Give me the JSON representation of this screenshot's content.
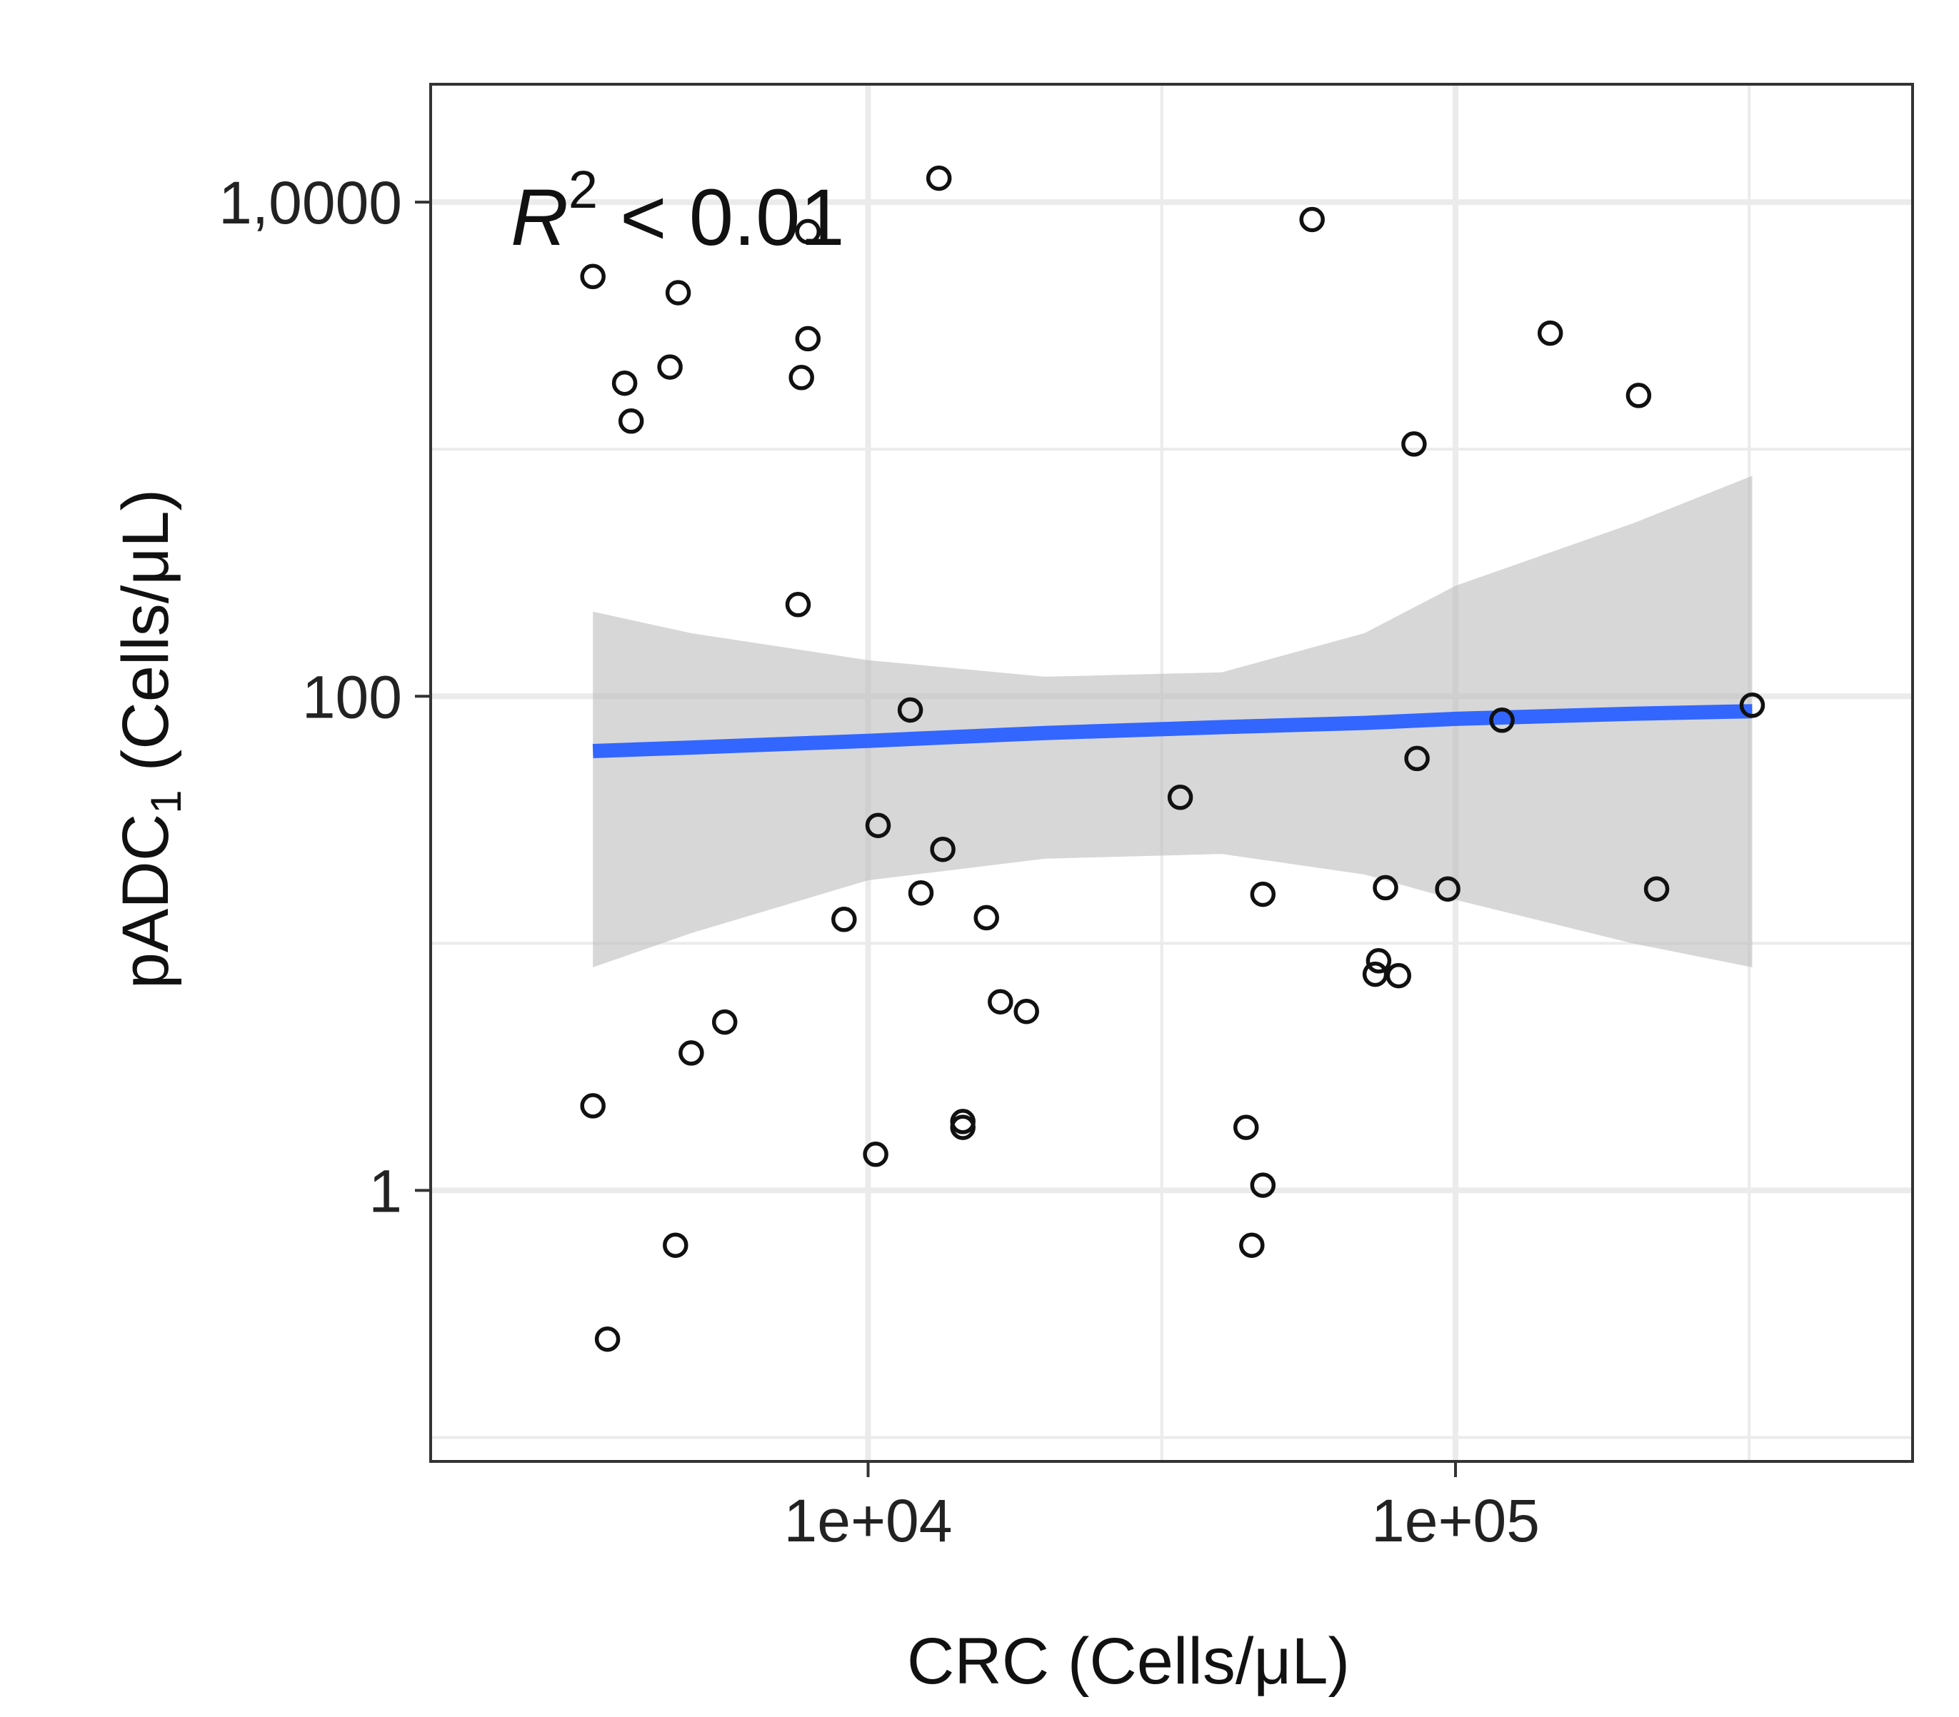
{
  "chart_data": {
    "type": "scatter",
    "title": "",
    "xlabel": "CRC (Cells/μL)",
    "ylabel_main": "pADC",
    "ylabel_sub": "1",
    "ylabel_units": "(Cells/μL)",
    "x_scale": "log10",
    "y_scale": "log10",
    "xlim": [
      1800,
      600000
    ],
    "ylim": [
      0.08,
      30000
    ],
    "x_ticks": [
      {
        "value": 10000,
        "label": "1e+04"
      },
      {
        "value": 100000,
        "label": "1e+05"
      }
    ],
    "x_minor_gridlines": [
      1000,
      31623,
      316228
    ],
    "y_ticks": [
      {
        "value": 1,
        "label": "1"
      },
      {
        "value": 100,
        "label": "100"
      },
      {
        "value": 10000,
        "label": "1,0000"
      }
    ],
    "y_minor_gridlines": [
      0.1,
      10,
      1000
    ],
    "annotation": {
      "r": "R",
      "sup": "2",
      "rest": " < 0.01"
    },
    "colors": {
      "fit_line": "#3366FF",
      "confidence_band": "#BDBDBD",
      "grid": "#EBEBEB",
      "panel_border": "#333333",
      "points": "#111111"
    },
    "fit": {
      "x": [
        3400,
        5000,
        10000,
        20000,
        40000,
        70000,
        100000,
        200000,
        320000
      ],
      "y": [
        60,
        62,
        66,
        71,
        75,
        78,
        81,
        85,
        87
      ],
      "lower": [
        8,
        11,
        18,
        22,
        23,
        19,
        15,
        10,
        8
      ],
      "upper": [
        220,
        180,
        140,
        120,
        125,
        180,
        280,
        500,
        780
      ]
    },
    "points": [
      {
        "x": 3400,
        "y": 5000
      },
      {
        "x": 3850,
        "y": 1850
      },
      {
        "x": 3950,
        "y": 1300
      },
      {
        "x": 4600,
        "y": 2150
      },
      {
        "x": 4750,
        "y": 4300
      },
      {
        "x": 7700,
        "y": 1950
      },
      {
        "x": 7900,
        "y": 7600
      },
      {
        "x": 7900,
        "y": 2800
      },
      {
        "x": 7600,
        "y": 235
      },
      {
        "x": 13200,
        "y": 12500
      },
      {
        "x": 57000,
        "y": 8500
      },
      {
        "x": 145000,
        "y": 2950
      },
      {
        "x": 85000,
        "y": 1050
      },
      {
        "x": 205000,
        "y": 1650
      },
      {
        "x": 11800,
        "y": 88
      },
      {
        "x": 10400,
        "y": 30
      },
      {
        "x": 12300,
        "y": 16
      },
      {
        "x": 9100,
        "y": 12.5
      },
      {
        "x": 15900,
        "y": 12.7
      },
      {
        "x": 13400,
        "y": 24
      },
      {
        "x": 34000,
        "y": 39
      },
      {
        "x": 47000,
        "y": 15.8
      },
      {
        "x": 73000,
        "y": 7.5
      },
      {
        "x": 86000,
        "y": 56
      },
      {
        "x": 97000,
        "y": 16.6
      },
      {
        "x": 120000,
        "y": 80
      },
      {
        "x": 220000,
        "y": 16.6
      },
      {
        "x": 320000,
        "y": 92
      },
      {
        "x": 76000,
        "y": 16.8
      },
      {
        "x": 74000,
        "y": 8.5
      },
      {
        "x": 80000,
        "y": 7.4
      },
      {
        "x": 16800,
        "y": 5.8
      },
      {
        "x": 18600,
        "y": 5.3
      },
      {
        "x": 5700,
        "y": 4.8
      },
      {
        "x": 5000,
        "y": 3.6
      },
      {
        "x": 3400,
        "y": 2.2
      },
      {
        "x": 10300,
        "y": 1.4
      },
      {
        "x": 14500,
        "y": 1.9
      },
      {
        "x": 14500,
        "y": 1.8
      },
      {
        "x": 44000,
        "y": 1.8
      },
      {
        "x": 45000,
        "y": 0.6
      },
      {
        "x": 4700,
        "y": 0.6
      },
      {
        "x": 3600,
        "y": 0.25
      },
      {
        "x": 47000,
        "y": 1.05
      }
    ]
  }
}
